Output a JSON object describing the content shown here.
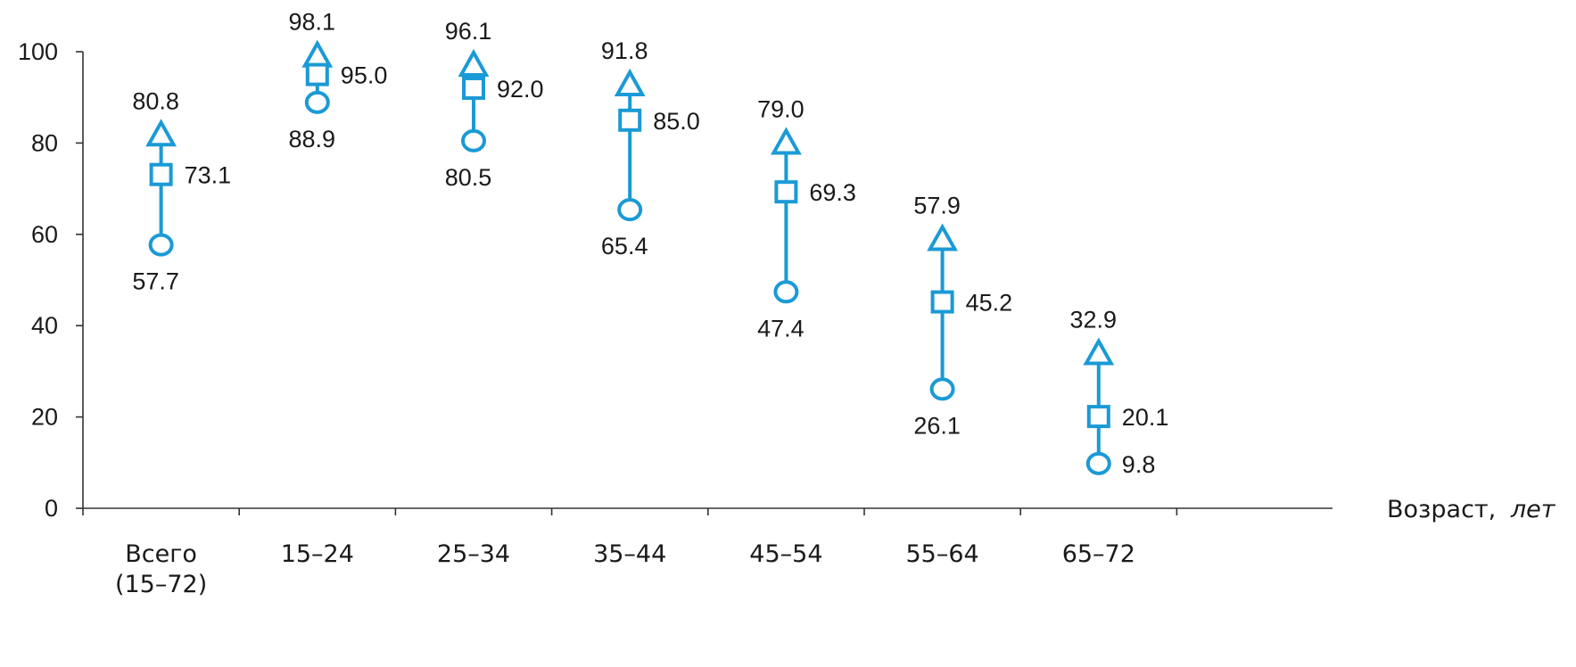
{
  "colors": {
    "marker": "#1a9ad6",
    "axis": "#333333",
    "text": "#1a1a1a"
  },
  "chart_data": {
    "type": "scatter",
    "categories": [
      [
        "Всего",
        "(15–72)"
      ],
      [
        "15–24"
      ],
      [
        "25–34"
      ],
      [
        "35–44"
      ],
      [
        "45–54"
      ],
      [
        "55–64"
      ],
      [
        "65–72"
      ]
    ],
    "series": [
      {
        "marker": "triangle",
        "values": [
          80.8,
          98.1,
          96.1,
          91.8,
          79.0,
          57.9,
          32.9
        ],
        "labels": [
          "80.8",
          "98.1",
          "96.1",
          "91.8",
          "79.0",
          "57.9",
          "32.9"
        ]
      },
      {
        "marker": "square",
        "values": [
          73.1,
          95.0,
          92.0,
          85.0,
          69.3,
          45.2,
          20.1
        ],
        "labels": [
          "73.1",
          "95.0",
          "92.0",
          "85.0",
          "69.3",
          "45.2",
          "20.1"
        ]
      },
      {
        "marker": "circle",
        "values": [
          57.7,
          88.9,
          80.5,
          65.4,
          47.4,
          26.1,
          9.8
        ],
        "labels": [
          "57.7",
          "88.9",
          "80.5",
          "65.4",
          "47.4",
          "26.1",
          "9.8"
        ]
      }
    ],
    "ylim": [
      0,
      100
    ],
    "yticks": [
      "0",
      "20",
      "40",
      "60",
      "80",
      "100"
    ],
    "xlabel": {
      "main": "Возраст,",
      "unit": "лет"
    },
    "ylabel": "",
    "grid": false
  }
}
